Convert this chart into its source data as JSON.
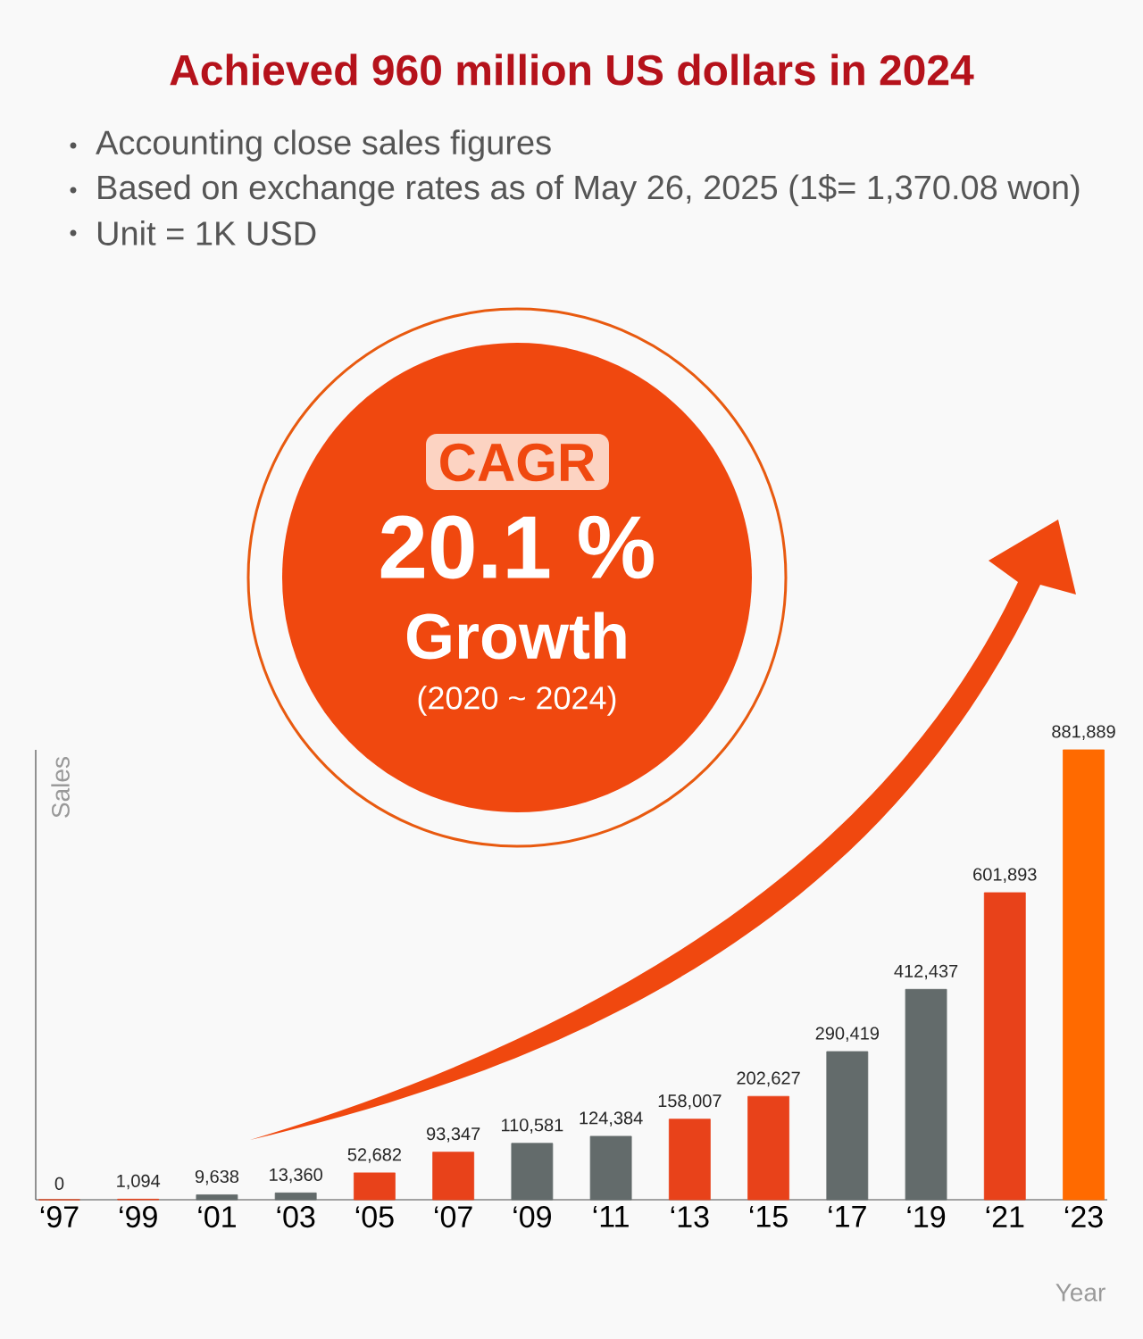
{
  "chart_data": {
    "type": "bar",
    "title": "Achieved 960 million US dollars in 2024",
    "annotations": [
      "Accounting close sales figures",
      "Based on exchange rates as of May 26, 2025 (1$= 1,370.08 won)",
      "Unit = 1K USD",
      "CAGR",
      "20.1 %",
      "Growth",
      "(2020 ~ 2024)"
    ],
    "xlabel": "Year",
    "ylabel": "Sales",
    "categories": [
      "‘97",
      "‘99",
      "‘01",
      "‘03",
      "‘05",
      "‘07",
      "‘09",
      "‘11",
      "‘13",
      "‘15",
      "‘17",
      "‘19",
      "‘21",
      "‘23"
    ],
    "values": [
      0,
      1094,
      9638,
      13360,
      52682,
      93347,
      110581,
      124384,
      158007,
      202627,
      290419,
      412437,
      601893,
      881889
    ],
    "value_labels": [
      "0",
      "1,094",
      "9,638",
      "13,360",
      "52,682",
      "93,347",
      "110,581",
      "124,384",
      "158,007",
      "202,627",
      "290,419",
      "412,437",
      "601,893",
      "881,889"
    ],
    "colors": [
      "#e8421a",
      "#e8421a",
      "#636b6b",
      "#636b6b",
      "#e8421a",
      "#e8421a",
      "#636b6b",
      "#636b6b",
      "#e8421a",
      "#e8421a",
      "#636b6b",
      "#636b6b",
      "#e8421a",
      "#ff6a00"
    ],
    "tick_labels": "x"
  }
}
